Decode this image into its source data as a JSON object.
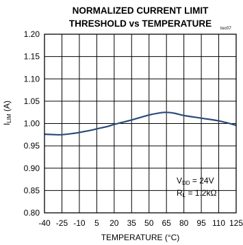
{
  "chart_data": {
    "type": "line",
    "title_line1": "NORMALIZED CURRENT LIMIT",
    "title_line2": "THRESHOLD vs TEMPERATURE",
    "figure_code": "toc07",
    "xlabel": "TEMPERATURE (°C)",
    "ylabel": {
      "main": "I",
      "sub": "LIM",
      "unit": " (A)"
    },
    "xlim": [
      -40,
      125
    ],
    "ylim": [
      0.8,
      1.2
    ],
    "xticks": [
      "-40",
      "-25",
      "-10",
      "5",
      "20",
      "35",
      "50",
      "65",
      "80",
      "95",
      "110",
      "125"
    ],
    "yticks": [
      "0.80",
      "0.85",
      "0.90",
      "0.95",
      "1.00",
      "1.05",
      "1.10",
      "1.15",
      "1.20"
    ],
    "grid": true,
    "conditions": {
      "vdd": {
        "main": "V",
        "sub": "DD",
        "rest": " = 24V"
      },
      "rl": {
        "main": "R",
        "sub": "L",
        "rest": " = 1.2kΩ"
      }
    },
    "line_color": "#2b4a7a",
    "series": [
      {
        "x": [
          -40,
          -30,
          -25,
          -15,
          -10,
          0,
          5,
          15,
          20,
          35,
          50,
          60,
          65,
          72,
          80,
          95,
          110,
          125
        ],
        "y": [
          0.976,
          0.975,
          0.975,
          0.978,
          0.98,
          0.985,
          0.988,
          0.994,
          0.998,
          1.008,
          1.019,
          1.024,
          1.025,
          1.023,
          1.018,
          1.012,
          1.006,
          0.996
        ]
      }
    ]
  }
}
